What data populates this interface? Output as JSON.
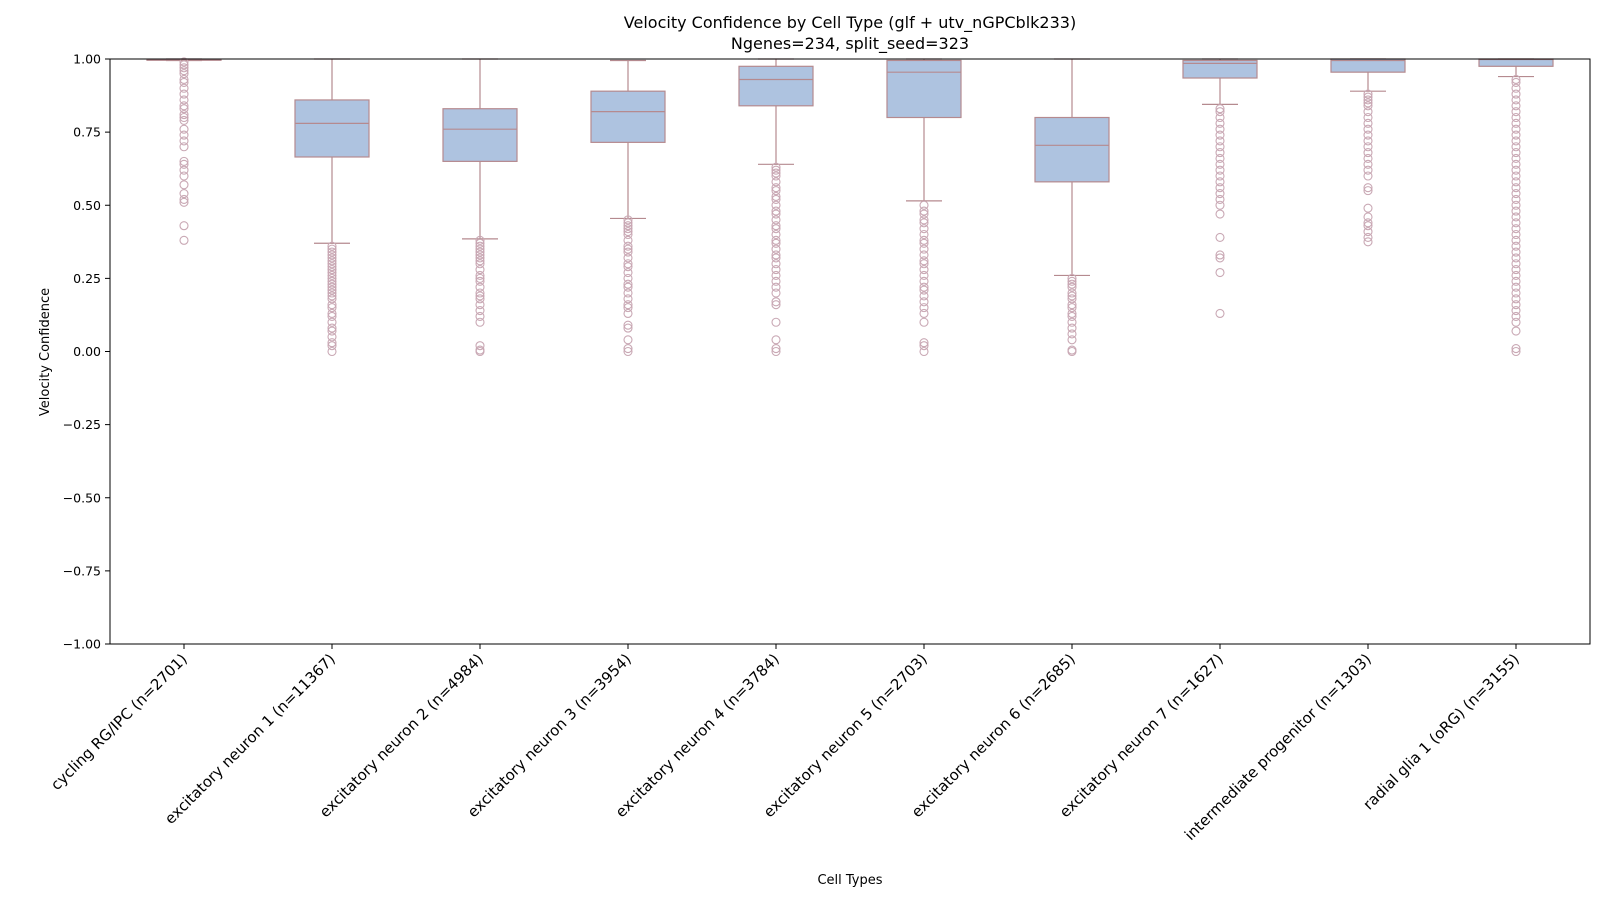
{
  "chart_data": {
    "type": "box",
    "title_line1": "Velocity Confidence by Cell Type (glf + utv_nGPCblk233)",
    "title_line2": "Ngenes=234, split_seed=323",
    "xlabel": "Cell Types",
    "ylabel": "Velocity Confidence",
    "ylim": [
      -1.0,
      1.0
    ],
    "yticks": [
      "-1.00",
      "-0.75",
      "-0.50",
      "-0.25",
      "0.00",
      "0.25",
      "0.50",
      "0.75",
      "1.00"
    ],
    "ytick_values": [
      -1.0,
      -0.75,
      -0.5,
      -0.25,
      0.0,
      0.25,
      0.5,
      0.75,
      1.0
    ],
    "colors": {
      "box_fill": "#aec3e0",
      "box_edge": "#b58a8f",
      "flier_edge": "#c9a8b4"
    },
    "categories": [
      "cycling RG/IPC (n=2701)",
      "excitatory neuron 1 (n=11367)",
      "excitatory neuron 2 (n=4984)",
      "excitatory neuron 3 (n=3954)",
      "excitatory neuron 4 (n=3784)",
      "excitatory neuron 5 (n=2703)",
      "excitatory neuron 6 (n=2685)",
      "excitatory neuron 7 (n=1627)",
      "intermediate progenitor (n=1303)",
      "radial glia 1 (oRG) (n=3155)"
    ],
    "boxes": [
      {
        "whislo": 0.995,
        "q1": 0.997,
        "med": 0.998,
        "q3": 0.999,
        "whishi": 1.0,
        "fliers": [
          0.38,
          0.43,
          0.51,
          0.52,
          0.54,
          0.57,
          0.6,
          0.62,
          0.64,
          0.65,
          0.7,
          0.72,
          0.74,
          0.76,
          0.79,
          0.8,
          0.81,
          0.83,
          0.84,
          0.86,
          0.88,
          0.9,
          0.92,
          0.93,
          0.95,
          0.96,
          0.97,
          0.98,
          0.99
        ]
      },
      {
        "whislo": 0.37,
        "q1": 0.665,
        "med": 0.78,
        "q3": 0.86,
        "whishi": 1.0,
        "fliers": [
          0.0,
          0.02,
          0.03,
          0.05,
          0.07,
          0.08,
          0.1,
          0.12,
          0.13,
          0.15,
          0.16,
          0.18,
          0.19,
          0.2,
          0.21,
          0.22,
          0.23,
          0.24,
          0.25,
          0.26,
          0.27,
          0.28,
          0.29,
          0.3,
          0.31,
          0.32,
          0.33,
          0.34,
          0.35,
          0.36
        ]
      },
      {
        "whislo": 0.385,
        "q1": 0.65,
        "med": 0.76,
        "q3": 0.83,
        "whishi": 1.0,
        "fliers": [
          0.0,
          0.005,
          0.02,
          0.1,
          0.12,
          0.14,
          0.16,
          0.18,
          0.19,
          0.2,
          0.22,
          0.24,
          0.25,
          0.26,
          0.28,
          0.3,
          0.31,
          0.32,
          0.33,
          0.34,
          0.35,
          0.36,
          0.37,
          0.38
        ]
      },
      {
        "whislo": 0.455,
        "q1": 0.715,
        "med": 0.82,
        "q3": 0.89,
        "whishi": 0.995,
        "fliers": [
          0.0,
          0.01,
          0.04,
          0.08,
          0.09,
          0.13,
          0.15,
          0.16,
          0.18,
          0.2,
          0.22,
          0.23,
          0.25,
          0.27,
          0.29,
          0.3,
          0.32,
          0.34,
          0.35,
          0.36,
          0.38,
          0.4,
          0.41,
          0.42,
          0.43,
          0.44,
          0.45
        ]
      },
      {
        "whislo": 0.64,
        "q1": 0.84,
        "med": 0.93,
        "q3": 0.975,
        "whishi": 1.0,
        "fliers": [
          0.0,
          0.01,
          0.04,
          0.1,
          0.16,
          0.17,
          0.2,
          0.22,
          0.24,
          0.26,
          0.28,
          0.3,
          0.32,
          0.33,
          0.35,
          0.37,
          0.38,
          0.4,
          0.42,
          0.43,
          0.45,
          0.47,
          0.48,
          0.5,
          0.52,
          0.53,
          0.55,
          0.56,
          0.58,
          0.6,
          0.61,
          0.62,
          0.63
        ]
      },
      {
        "whislo": 0.515,
        "q1": 0.8,
        "med": 0.955,
        "q3": 0.995,
        "whishi": 1.0,
        "fliers": [
          0.0,
          0.02,
          0.03,
          0.1,
          0.13,
          0.15,
          0.17,
          0.19,
          0.21,
          0.22,
          0.24,
          0.26,
          0.28,
          0.3,
          0.31,
          0.33,
          0.35,
          0.37,
          0.38,
          0.4,
          0.42,
          0.44,
          0.45,
          0.47,
          0.48,
          0.5
        ]
      },
      {
        "whislo": 0.26,
        "q1": 0.58,
        "med": 0.705,
        "q3": 0.8,
        "whishi": 1.0,
        "fliers": [
          0.0,
          0.005,
          0.04,
          0.06,
          0.08,
          0.1,
          0.12,
          0.13,
          0.15,
          0.16,
          0.18,
          0.19,
          0.2,
          0.22,
          0.23,
          0.24,
          0.25
        ]
      },
      {
        "whislo": 0.845,
        "q1": 0.935,
        "med": 0.985,
        "q3": 0.995,
        "whishi": 1.0,
        "fliers": [
          0.13,
          0.27,
          0.32,
          0.33,
          0.39,
          0.47,
          0.5,
          0.52,
          0.54,
          0.56,
          0.58,
          0.6,
          0.62,
          0.64,
          0.66,
          0.68,
          0.7,
          0.72,
          0.74,
          0.76,
          0.78,
          0.8,
          0.82,
          0.83
        ]
      },
      {
        "whislo": 0.89,
        "q1": 0.955,
        "med": 0.995,
        "q3": 1.0,
        "whishi": 1.0,
        "fliers": [
          0.375,
          0.39,
          0.41,
          0.43,
          0.44,
          0.46,
          0.49,
          0.55,
          0.56,
          0.6,
          0.62,
          0.64,
          0.66,
          0.68,
          0.7,
          0.72,
          0.74,
          0.76,
          0.78,
          0.8,
          0.82,
          0.84,
          0.85,
          0.86,
          0.87,
          0.88
        ]
      },
      {
        "whislo": 0.94,
        "q1": 0.975,
        "med": 0.998,
        "q3": 1.0,
        "whishi": 1.0,
        "fliers": [
          0.0,
          0.01,
          0.07,
          0.1,
          0.12,
          0.14,
          0.16,
          0.18,
          0.2,
          0.22,
          0.24,
          0.26,
          0.28,
          0.3,
          0.32,
          0.34,
          0.36,
          0.38,
          0.4,
          0.42,
          0.44,
          0.46,
          0.48,
          0.5,
          0.52,
          0.54,
          0.56,
          0.58,
          0.6,
          0.62,
          0.64,
          0.66,
          0.68,
          0.7,
          0.72,
          0.74,
          0.76,
          0.78,
          0.8,
          0.82,
          0.84,
          0.86,
          0.88,
          0.9,
          0.92,
          0.93
        ]
      }
    ]
  }
}
